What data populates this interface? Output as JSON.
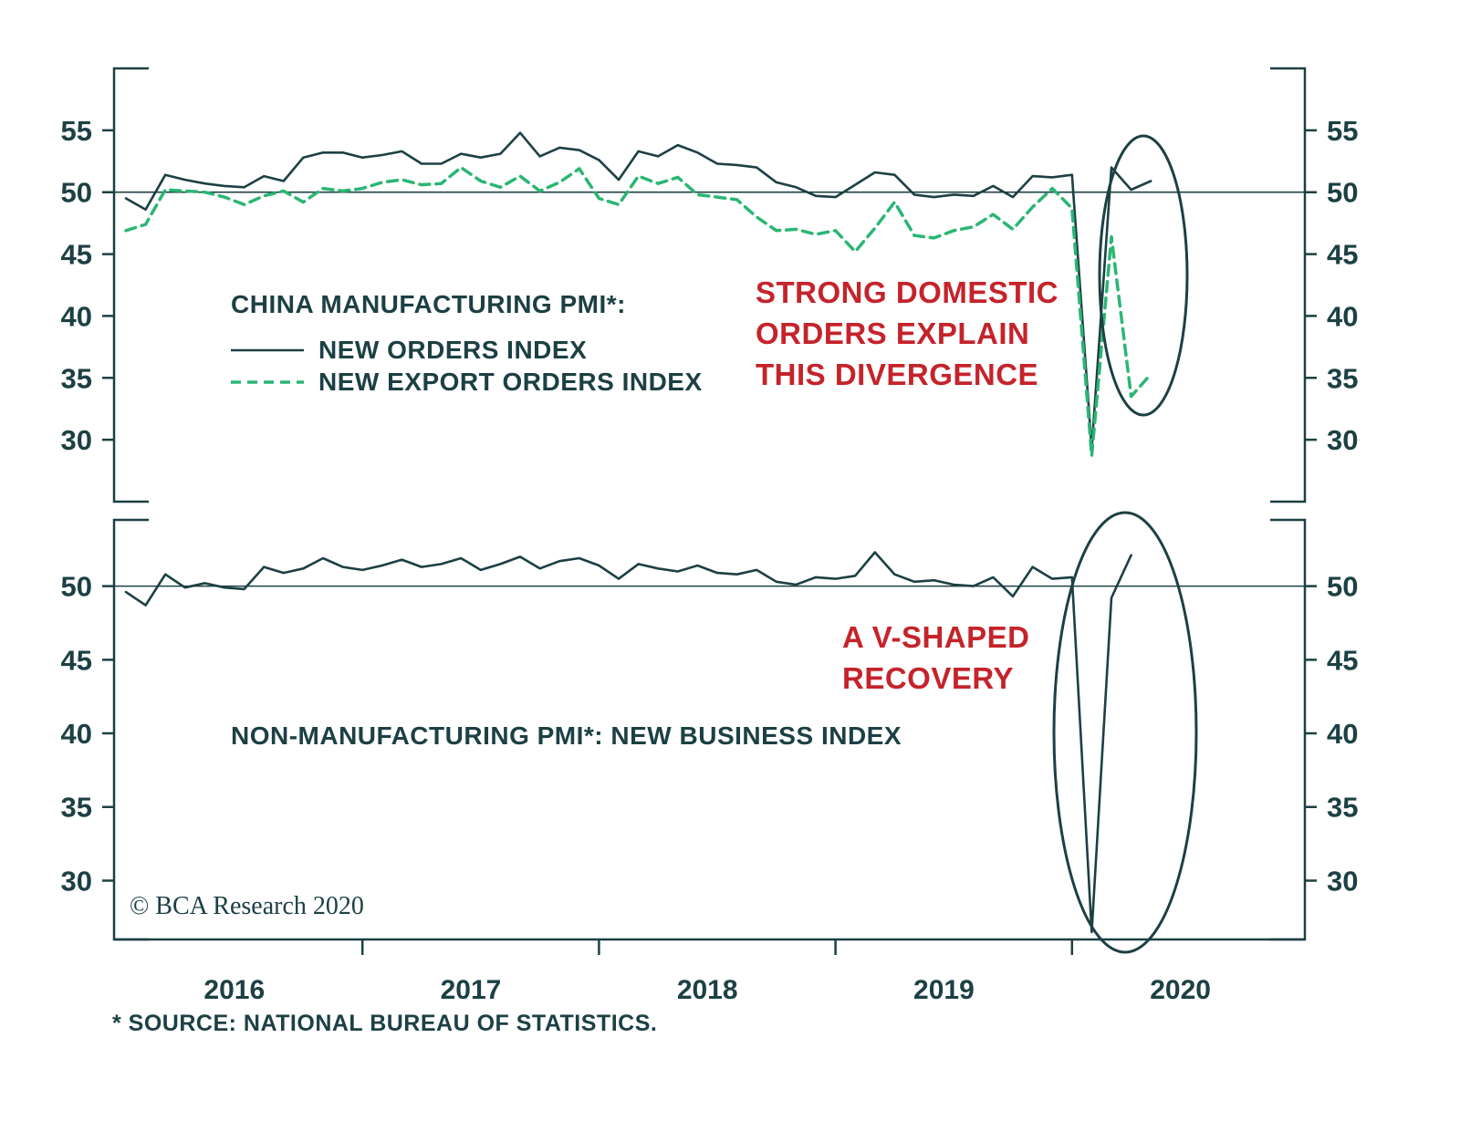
{
  "colors": {
    "dark": "#1c4044",
    "green": "#2bb673",
    "red": "#c5232b"
  },
  "top_panel": {
    "legend_title": "CHINA MANUFACTURING PMI*:",
    "legend": [
      {
        "label": "NEW ORDERS INDEX",
        "style": "solid"
      },
      {
        "label": "NEW EXPORT ORDERS INDEX",
        "style": "dashed"
      }
    ],
    "annotation": "STRONG DOMESTIC\nORDERS EXPLAIN\nTHIS DIVERGENCE"
  },
  "bottom_panel": {
    "label": "NON-MANUFACTURING PMI*: NEW BUSINESS INDEX",
    "annotation": "A V-SHAPED\nRECOVERY"
  },
  "copyright": "© BCA Research 2020",
  "footnote": "* SOURCE: NATIONAL BUREAU OF STATISTICS.",
  "chart_data": {
    "type": "line",
    "months": [
      "2016-01",
      "2016-02",
      "2016-03",
      "2016-04",
      "2016-05",
      "2016-06",
      "2016-07",
      "2016-08",
      "2016-09",
      "2016-10",
      "2016-11",
      "2016-12",
      "2017-01",
      "2017-02",
      "2017-03",
      "2017-04",
      "2017-05",
      "2017-06",
      "2017-07",
      "2017-08",
      "2017-09",
      "2017-10",
      "2017-11",
      "2017-12",
      "2018-01",
      "2018-02",
      "2018-03",
      "2018-04",
      "2018-05",
      "2018-06",
      "2018-07",
      "2018-08",
      "2018-09",
      "2018-10",
      "2018-11",
      "2018-12",
      "2019-01",
      "2019-02",
      "2019-03",
      "2019-04",
      "2019-05",
      "2019-06",
      "2019-07",
      "2019-08",
      "2019-09",
      "2019-10",
      "2019-11",
      "2019-12",
      "2020-01",
      "2020-02",
      "2020-03",
      "2020-04",
      "2020-05"
    ],
    "x_tick_labels": [
      "2016",
      "2017",
      "2018",
      "2019",
      "2020"
    ],
    "panels": [
      {
        "title": "CHINA MANUFACTURING PMI: NEW ORDERS INDEX vs NEW EXPORT ORDERS INDEX",
        "ylim": [
          25,
          60
        ],
        "yticks": [
          30,
          35,
          40,
          45,
          50,
          55
        ],
        "reference_line": 50,
        "series": [
          {
            "name": "NEW ORDERS INDEX",
            "style": "solid",
            "color": "dark",
            "values": [
              49.5,
              48.6,
              51.4,
              51.0,
              50.7,
              50.5,
              50.4,
              51.3,
              50.9,
              52.8,
              53.2,
              53.2,
              52.8,
              53.0,
              53.3,
              52.3,
              52.3,
              53.1,
              52.8,
              53.1,
              54.8,
              52.9,
              53.6,
              53.4,
              52.6,
              51.0,
              53.3,
              52.9,
              53.8,
              53.2,
              52.3,
              52.2,
              52.0,
              50.8,
              50.4,
              49.7,
              49.6,
              50.6,
              51.6,
              51.4,
              49.8,
              49.6,
              49.8,
              49.7,
              50.5,
              49.6,
              51.3,
              51.2,
              51.4,
              29.3,
              52.0,
              50.2,
              50.9
            ]
          },
          {
            "name": "NEW EXPORT ORDERS INDEX",
            "style": "dashed",
            "color": "green",
            "values": [
              46.9,
              47.4,
              50.2,
              50.1,
              50.0,
              49.6,
              49.0,
              49.7,
              50.1,
              49.2,
              50.3,
              50.1,
              50.3,
              50.8,
              51.0,
              50.6,
              50.7,
              52.0,
              50.9,
              50.4,
              51.3,
              50.1,
              50.8,
              51.9,
              49.5,
              49.0,
              51.3,
              50.7,
              51.2,
              49.8,
              49.6,
              49.4,
              48.0,
              46.9,
              47.0,
              46.6,
              46.9,
              45.2,
              47.1,
              49.2,
              46.5,
              46.3,
              46.9,
              47.2,
              48.2,
              47.0,
              48.8,
              50.3,
              48.7,
              28.7,
              46.4,
              33.5,
              35.3
            ]
          }
        ]
      },
      {
        "title": "NON-MANUFACTURING PMI: NEW BUSINESS INDEX",
        "ylim": [
          26,
          54.5
        ],
        "yticks": [
          30,
          35,
          40,
          45,
          50
        ],
        "reference_line": 50,
        "series": [
          {
            "name": "NEW BUSINESS INDEX",
            "style": "solid",
            "color": "dark",
            "values": [
              49.6,
              48.7,
              50.8,
              49.9,
              50.2,
              49.9,
              49.8,
              51.3,
              50.9,
              51.2,
              51.9,
              51.3,
              51.1,
              51.4,
              51.8,
              51.3,
              51.5,
              51.9,
              51.1,
              51.5,
              52.0,
              51.2,
              51.7,
              51.9,
              51.4,
              50.5,
              51.5,
              51.2,
              51.0,
              51.4,
              50.9,
              50.8,
              51.1,
              50.3,
              50.1,
              50.6,
              50.5,
              50.7,
              52.3,
              50.8,
              50.3,
              50.4,
              50.1,
              50.0,
              50.6,
              49.3,
              51.3,
              50.5,
              50.6,
              26.5,
              49.2,
              52.1,
              null
            ]
          }
        ]
      }
    ]
  }
}
